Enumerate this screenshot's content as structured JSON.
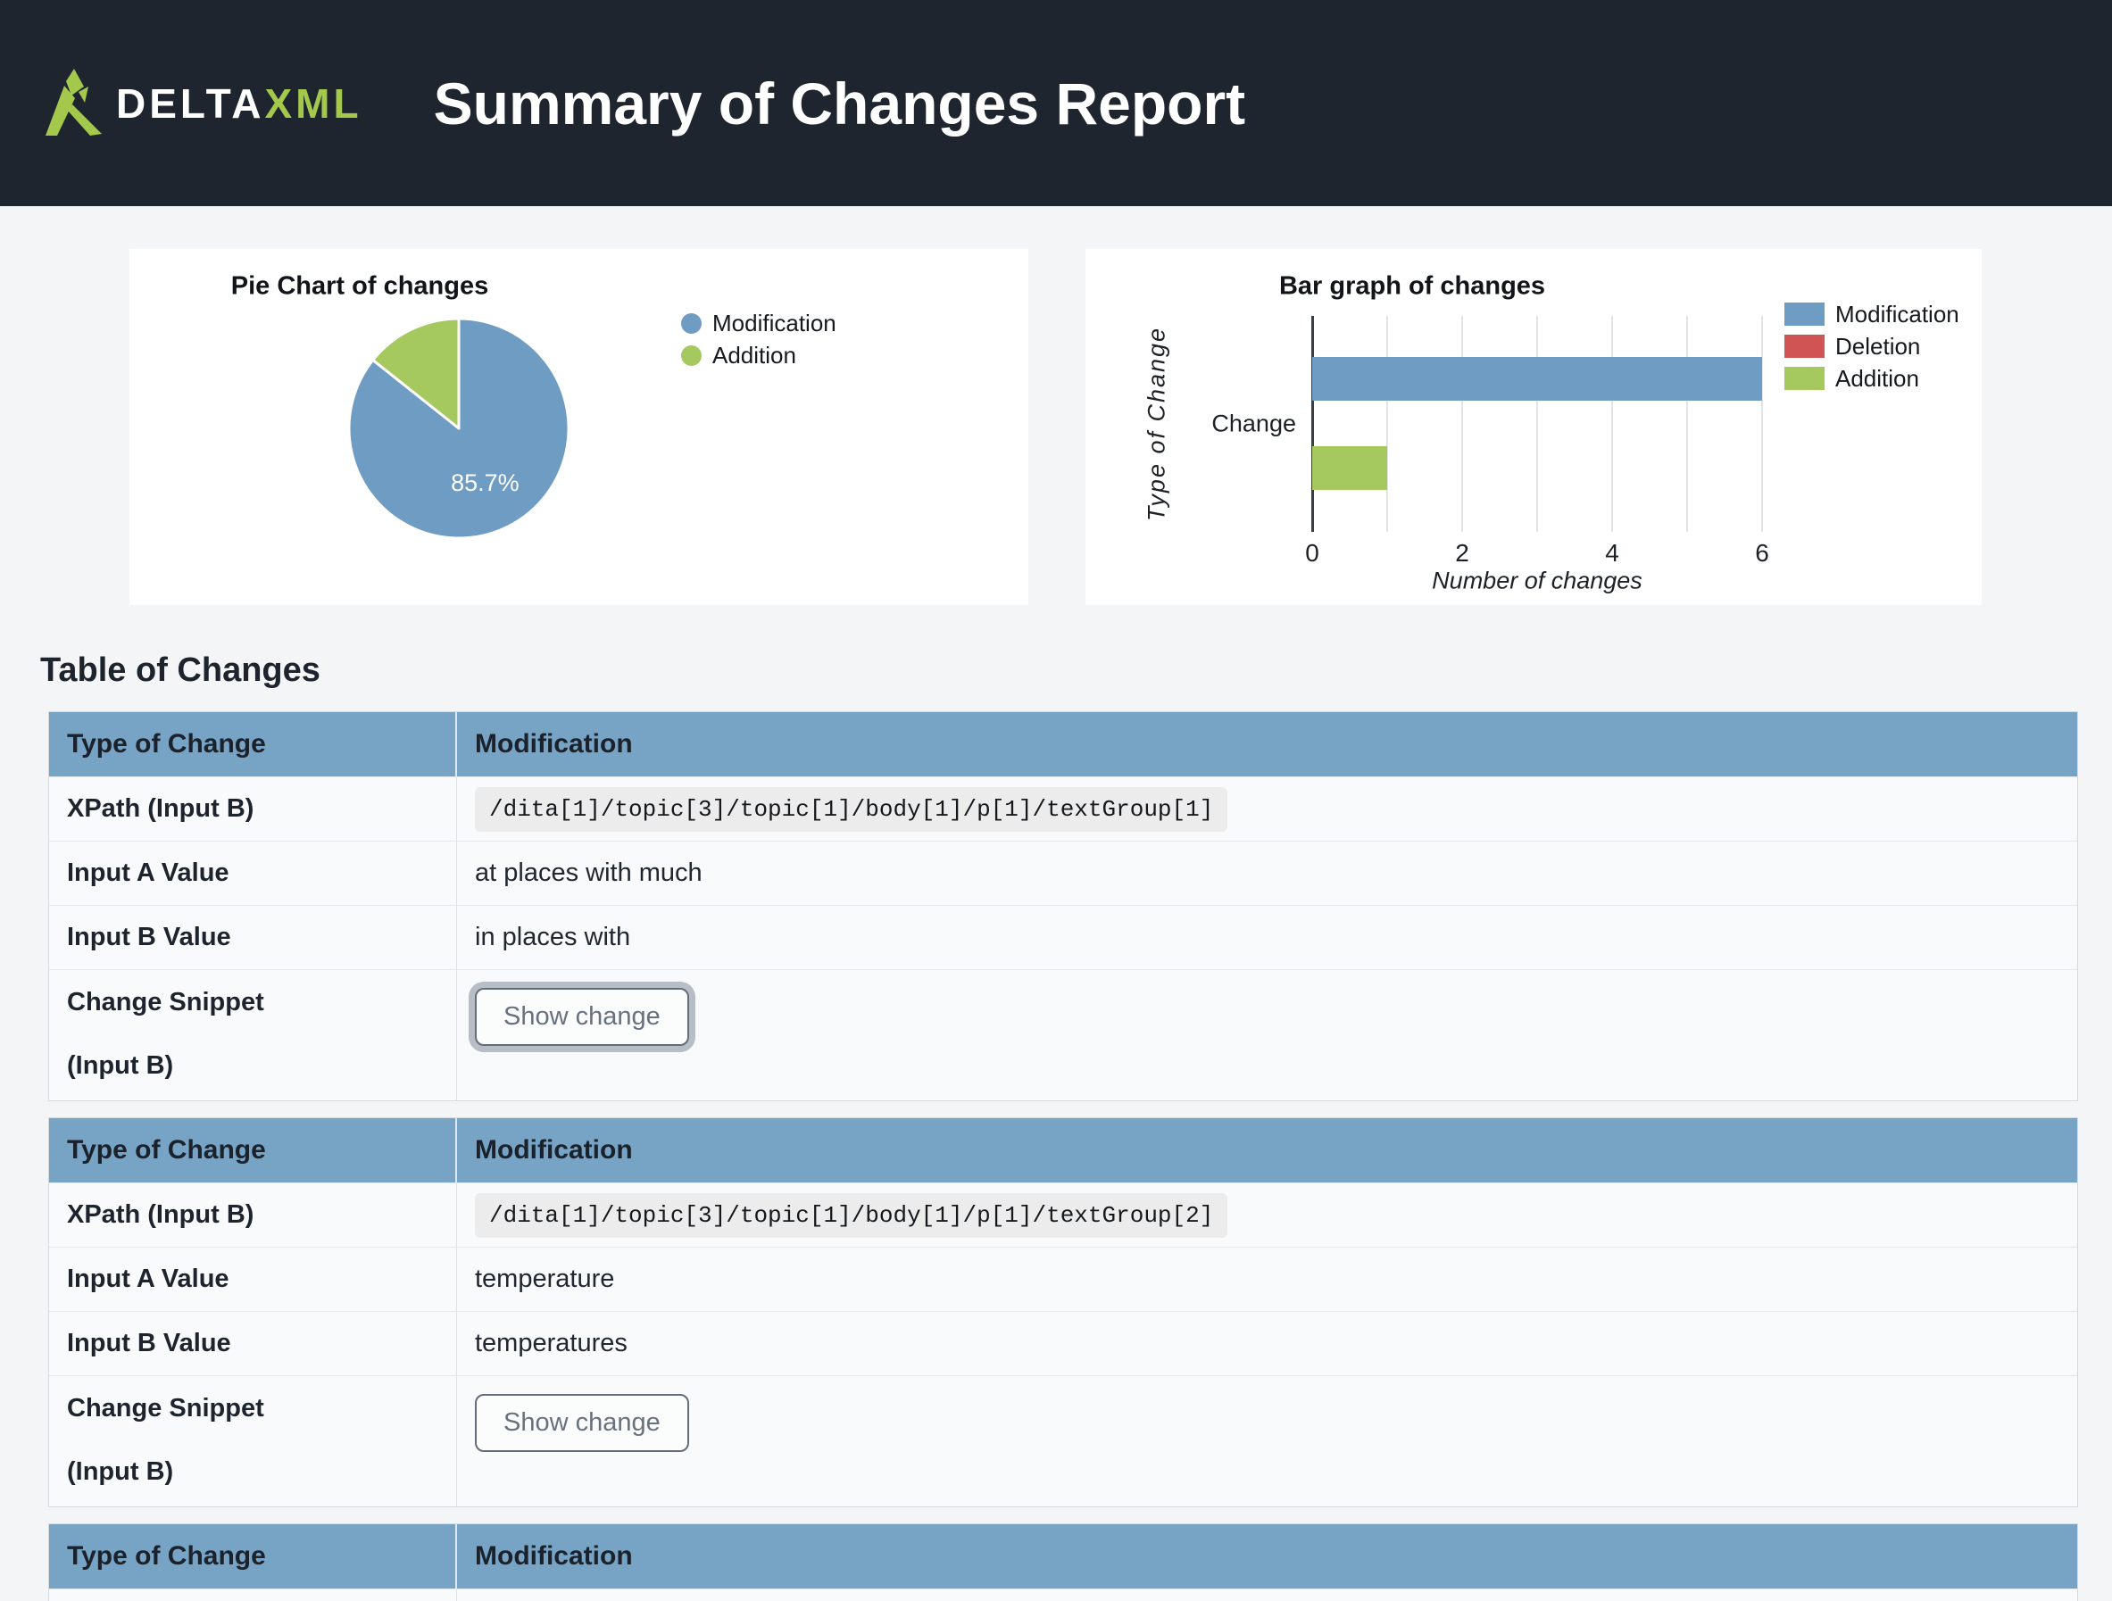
{
  "header": {
    "brand_delta": "DELTA",
    "brand_xml": "XML",
    "title": "Summary of Changes Report"
  },
  "colors": {
    "modification_blue": "#6f9cc3",
    "deletion_red": "#d15454",
    "addition_green": "#a5c95e",
    "table_header_blue": "#77a3c5",
    "topbar_dark": "#1f252f",
    "logo_green": "#a3c84b"
  },
  "chart_data": [
    {
      "type": "pie",
      "title": "Pie Chart of changes",
      "labels": [
        "Modification",
        "Addition"
      ],
      "values": [
        85.7,
        14.3
      ],
      "colors": [
        "#6f9cc3",
        "#a5c95e"
      ],
      "data_labels": [
        "85.7%",
        ""
      ],
      "legend_position": "right"
    },
    {
      "type": "bar",
      "orientation": "horizontal",
      "title": "Bar graph of changes",
      "categories": [
        "Change"
      ],
      "series": [
        {
          "name": "Modification",
          "values": [
            6
          ],
          "color": "#6f9cc3"
        },
        {
          "name": "Deletion",
          "values": [
            0
          ],
          "color": "#d15454"
        },
        {
          "name": "Addition",
          "values": [
            1
          ],
          "color": "#a5c95e"
        }
      ],
      "xlabel": "Number of changes",
      "ylabel": "Type of Change",
      "xlim": [
        0,
        6
      ],
      "xticks": [
        0,
        2,
        4,
        6
      ],
      "gridlines": [
        1,
        2,
        3,
        4,
        5,
        6
      ],
      "legend_position": "right",
      "grid": true
    }
  ],
  "table_section": {
    "heading": "Table of Changes",
    "entries": [
      {
        "type_of_change_label": "Type of Change",
        "type_of_change": "Modification",
        "rows": {
          "xpath_label": "XPath (Input B)",
          "xpath": "/dita[1]/topic[3]/topic[1]/body[1]/p[1]/textGroup[1]",
          "input_a_label": "Input A Value",
          "input_a": "at places with much",
          "input_b_label": "Input B Value",
          "input_b": "in places with",
          "snippet_label_line1": "Change Snippet",
          "snippet_label_line2": "(Input B)",
          "show_change_label": "Show change"
        },
        "show_change_focused": true
      },
      {
        "type_of_change_label": "Type of Change",
        "type_of_change": "Modification",
        "rows": {
          "xpath_label": "XPath (Input B)",
          "xpath": "/dita[1]/topic[3]/topic[1]/body[1]/p[1]/textGroup[2]",
          "input_a_label": "Input A Value",
          "input_a": "temperature",
          "input_b_label": "Input B Value",
          "input_b": "temperatures",
          "snippet_label_line1": "Change Snippet",
          "snippet_label_line2": "(Input B)",
          "show_change_label": "Show change"
        },
        "show_change_focused": false
      },
      {
        "type_of_change_label": "Type of Change",
        "type_of_change": "Modification"
      }
    ]
  }
}
